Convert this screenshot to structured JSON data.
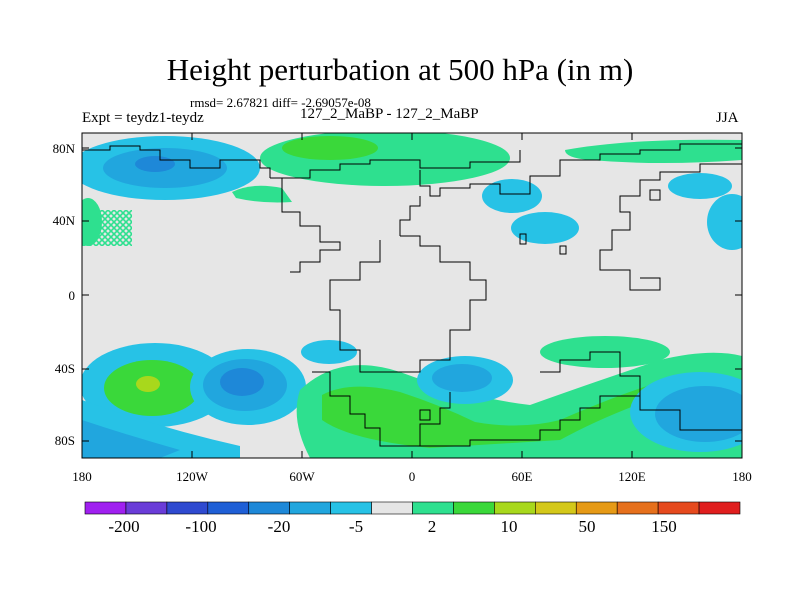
{
  "title": "Height perturbation at 500 hPa (in m)",
  "stats": "rmsd= 2.67821 diff= -2.69057e-08",
  "experiment": "Expt = teydz1-teydz",
  "case": "127_2_MaBP - 127_2_MaBP",
  "season": "JJA",
  "lat_labels": [
    "80N",
    "40N",
    "0",
    "40S",
    "80S"
  ],
  "lon_labels": [
    "180",
    "120W",
    "60W",
    "0",
    "60E",
    "120E",
    "180"
  ],
  "colorbar": {
    "colors": [
      "#a020f0",
      "#6a3cd8",
      "#2f4ad0",
      "#1f5fd6",
      "#1e88d8",
      "#21a6de",
      "#27c2e6",
      "#e6e6e6",
      "#2ee08f",
      "#3ad83a",
      "#a8d81c",
      "#d4c81a",
      "#e69a16",
      "#e6701c",
      "#e64a1e",
      "#e01e1e"
    ],
    "labels": [
      "-200",
      "-100",
      "-20",
      "-5",
      "2",
      "10",
      "50",
      "150"
    ]
  },
  "map_background": "#e6e6e6"
}
